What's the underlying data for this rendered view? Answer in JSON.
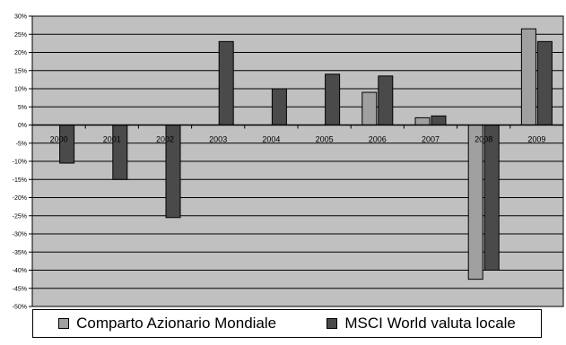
{
  "chart_data": {
    "type": "bar",
    "categories": [
      "2000",
      "2001",
      "2002",
      "2003",
      "2004",
      "2005",
      "2006",
      "2007",
      "2008",
      "2009"
    ],
    "series": [
      {
        "name": "Comparto Azionario Mondiale",
        "color": "#a0a0a0",
        "values": [
          null,
          null,
          null,
          null,
          null,
          null,
          9,
          2,
          -42.5,
          26.5
        ]
      },
      {
        "name": "MSCI World valuta locale",
        "color": "#4a4a4a",
        "values": [
          -10.5,
          -15,
          -25.5,
          23,
          10,
          14,
          13.5,
          2.5,
          -40,
          23
        ]
      }
    ],
    "ylim": [
      -50,
      30
    ],
    "y_ticks": [
      "30%",
      "25%",
      "20%",
      "15%",
      "10%",
      "5%",
      "0%",
      "-5%",
      "-10%",
      "-15%",
      "-20%",
      "-25%",
      "-30%",
      "-35%",
      "-40%",
      "-45%",
      "-50%"
    ],
    "grid": true,
    "plot_background": "#c0c0c0",
    "legend_position": "bottom",
    "title": "",
    "xlabel": "",
    "ylabel": ""
  }
}
